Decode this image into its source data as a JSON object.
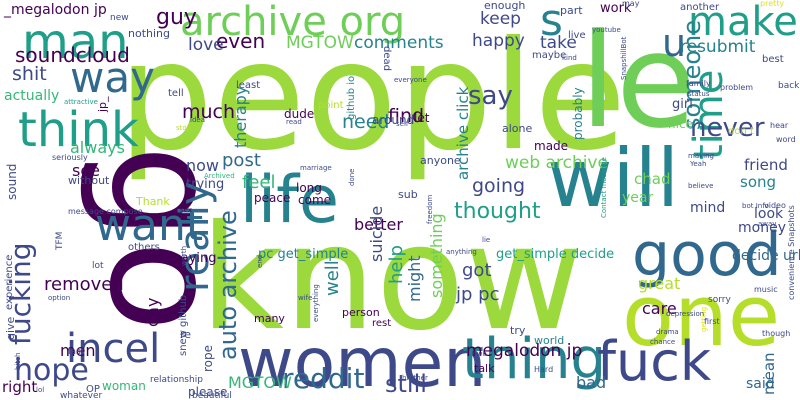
{
  "word_cloud": {
    "palette": {
      "dark_purple": "#440154",
      "indigo": "#3e4989",
      "slate_blue": "#31688e",
      "teal": "#26828e",
      "sea_green": "#1f9e89",
      "green": "#35b779",
      "light_green": "#6ece58",
      "lime": "#b5de2b",
      "yellow": "#e0e31b",
      "leaf": "#9bd93c"
    },
    "words": [
      {
        "text": "people",
        "color": "leaf"
      },
      {
        "text": "know",
        "color": "leaf"
      },
      {
        "text": "go",
        "color": "dark_purple"
      },
      {
        "text": "life",
        "color": "teal"
      },
      {
        "text": "will",
        "color": "teal"
      },
      {
        "text": "one",
        "color": "lime"
      },
      {
        "text": "women",
        "color": "indigo"
      },
      {
        "text": "good",
        "color": "slate_blue"
      },
      {
        "text": "thing",
        "color": "teal"
      },
      {
        "text": "fuck",
        "color": "indigo"
      },
      {
        "text": "want",
        "color": "slate_blue"
      },
      {
        "text": "archive org",
        "color": "light_green"
      },
      {
        "text": "man",
        "color": "sea_green"
      },
      {
        "text": "make",
        "color": "sea_green"
      },
      {
        "text": "think",
        "color": "sea_green"
      },
      {
        "text": "way",
        "color": "slate_blue"
      },
      {
        "text": "le",
        "color": "light_green"
      },
      {
        "text": "s",
        "color": "teal"
      },
      {
        "text": "u",
        "color": "slate_blue"
      },
      {
        "text": "incel",
        "color": "indigo"
      },
      {
        "text": "really",
        "color": "slate_blue"
      },
      {
        "text": "time",
        "color": "sea_green"
      },
      {
        "text": "reddit",
        "color": "slate_blue"
      },
      {
        "text": "still",
        "color": "indigo"
      },
      {
        "text": "hope",
        "color": "indigo"
      },
      {
        "text": "fucking",
        "color": "indigo"
      },
      {
        "text": "auto archive",
        "color": "slate_blue"
      },
      {
        "text": "say",
        "color": "indigo"
      },
      {
        "text": "never",
        "color": "indigo"
      },
      {
        "text": "someone",
        "color": "teal"
      },
      {
        "text": "soundcloud",
        "color": "dark_purple"
      },
      {
        "text": "guy",
        "color": "dark_purple"
      },
      {
        "text": "even",
        "color": "dark_purple"
      },
      {
        "text": "MGTOW",
        "color": "light_green"
      },
      {
        "text": "comments",
        "color": "teal"
      },
      {
        "text": "resubmit",
        "color": "teal"
      },
      {
        "text": "love",
        "color": "indigo"
      },
      {
        "text": "shit",
        "color": "indigo"
      },
      {
        "text": "keep",
        "color": "indigo"
      },
      {
        "text": "take",
        "color": "indigo"
      },
      {
        "text": "happy",
        "color": "indigo"
      },
      {
        "text": "much",
        "color": "dark_purple"
      },
      {
        "text": "need",
        "color": "teal"
      },
      {
        "text": "find",
        "color": "dark_purple"
      },
      {
        "text": "thought",
        "color": "sea_green"
      },
      {
        "text": "web archive",
        "color": "light_green"
      },
      {
        "text": "going",
        "color": "indigo"
      },
      {
        "text": "removed",
        "color": "dark_purple"
      },
      {
        "text": "feel",
        "color": "green"
      },
      {
        "text": "post",
        "color": "slate_blue"
      },
      {
        "text": "therapy",
        "color": "teal"
      },
      {
        "text": "actually",
        "color": "green"
      },
      {
        "text": "always",
        "color": "green"
      },
      {
        "text": "see",
        "color": "dark_purple"
      },
      {
        "text": "now",
        "color": "indigo"
      },
      {
        "text": "better",
        "color": "dark_purple"
      },
      {
        "text": "help",
        "color": "sea_green"
      },
      {
        "text": "got",
        "color": "indigo"
      },
      {
        "text": "jp pc",
        "color": "indigo"
      },
      {
        "text": "world",
        "color": "teal"
      },
      {
        "text": "well",
        "color": "teal"
      },
      {
        "text": "might",
        "color": "slate_blue"
      },
      {
        "text": "men",
        "color": "dark_purple"
      },
      {
        "text": "day",
        "color": "dark_purple"
      },
      {
        "text": "right",
        "color": "dark_purple"
      },
      {
        "text": "MGTOW",
        "color": "green"
      },
      {
        "text": "megalodon jp",
        "color": "dark_purple"
      },
      {
        "text": "bad",
        "color": "slate_blue"
      },
      {
        "text": "great",
        "color": "lime"
      },
      {
        "text": "care",
        "color": "dark_purple"
      },
      {
        "text": "mean",
        "color": "slate_blue"
      },
      {
        "text": "said",
        "color": "slate_blue"
      },
      {
        "text": "money",
        "color": "indigo"
      },
      {
        "text": "friend",
        "color": "indigo"
      },
      {
        "text": "song",
        "color": "teal"
      },
      {
        "text": "chad",
        "color": "light_green"
      },
      {
        "text": "year",
        "color": "light_green"
      },
      {
        "text": "mind",
        "color": "indigo"
      },
      {
        "text": "look",
        "color": "indigo"
      },
      {
        "text": "decide url",
        "color": "slate_blue"
      },
      {
        "text": "something",
        "color": "light_green"
      },
      {
        "text": "suicide",
        "color": "indigo"
      },
      {
        "text": "archive click",
        "color": "teal"
      },
      {
        "text": "_megalodon jp",
        "color": "dark_purple"
      },
      {
        "text": "pc get_simple",
        "color": "teal"
      },
      {
        "text": "get_simple decide",
        "color": "sea_green"
      },
      {
        "text": "work",
        "color": "dark_purple"
      },
      {
        "text": "girl",
        "color": "indigo"
      },
      {
        "text": "trying",
        "color": "indigo"
      },
      {
        "text": "saying",
        "color": "dark_purple"
      },
      {
        "text": "dude",
        "color": "dark_purple"
      },
      {
        "text": "long",
        "color": "dark_purple"
      },
      {
        "text": "come",
        "color": "dark_purple"
      },
      {
        "text": "peace",
        "color": "dark_purple"
      },
      {
        "text": "let",
        "color": "dark_purple"
      },
      {
        "text": "probably",
        "color": "teal"
      },
      {
        "text": "around",
        "color": "indigo"
      },
      {
        "text": "made",
        "color": "dark_purple"
      },
      {
        "text": "part",
        "color": "indigo"
      },
      {
        "text": "enough",
        "color": "indigo"
      },
      {
        "text": "nothing",
        "color": "indigo"
      },
      {
        "text": "sound",
        "color": "indigo"
      },
      {
        "text": "without",
        "color": "indigo"
      },
      {
        "text": "re",
        "color": "indigo"
      },
      {
        "text": "rope",
        "color": "indigo"
      },
      {
        "text": "please",
        "color": "indigo"
      },
      {
        "text": "many",
        "color": "dark_purple"
      },
      {
        "text": "woman",
        "color": "green"
      },
      {
        "text": "nice",
        "color": "light_green"
      },
      {
        "text": "alone",
        "color": "indigo"
      },
      {
        "text": "sub",
        "color": "indigo"
      },
      {
        "text": "anyone",
        "color": "indigo"
      },
      {
        "text": "talk",
        "color": "dark_purple"
      },
      {
        "text": "try",
        "color": "indigo"
      },
      {
        "text": "person",
        "color": "dark_purple"
      },
      {
        "text": "rest",
        "color": "dark_purple"
      },
      {
        "text": "give",
        "color": "indigo"
      },
      {
        "text": "last",
        "color": "indigo"
      },
      {
        "text": "OP",
        "color": "indigo"
      },
      {
        "text": "lot",
        "color": "indigo"
      },
      {
        "text": "experience",
        "color": "indigo"
      },
      {
        "text": "others",
        "color": "indigo"
      },
      {
        "text": "TFM",
        "color": "indigo"
      },
      {
        "text": "Thank",
        "color": "lime"
      },
      {
        "text": "relationship",
        "color": "indigo"
      },
      {
        "text": "snew github",
        "color": "indigo"
      },
      {
        "text": "beautiful",
        "color": "indigo"
      },
      {
        "text": "whatever",
        "color": "indigo"
      },
      {
        "text": "github io",
        "color": "teal"
      },
      {
        "text": "point",
        "color": "lime"
      },
      {
        "text": "dead",
        "color": "indigo"
      },
      {
        "text": "live",
        "color": "indigo"
      },
      {
        "text": "maybe",
        "color": "indigo"
      },
      {
        "text": "new",
        "color": "indigo"
      },
      {
        "text": "least",
        "color": "indigo"
      },
      {
        "text": "tell",
        "color": "indigo"
      },
      {
        "text": "jp_",
        "color": "dark_purple"
      },
      {
        "text": "seriously",
        "color": "indigo"
      },
      {
        "text": "message compose",
        "color": "indigo"
      },
      {
        "text": "attractive",
        "color": "sea_green"
      },
      {
        "text": "Archived",
        "color": "green"
      },
      {
        "text": "idea",
        "color": "indigo"
      },
      {
        "text": "stop",
        "color": "lime"
      },
      {
        "text": "sex",
        "color": "dark_purple"
      },
      {
        "text": "read",
        "color": "indigo"
      },
      {
        "text": "marriage",
        "color": "indigo"
      },
      {
        "text": "everyone",
        "color": "indigo"
      },
      {
        "text": "self",
        "color": "indigo"
      },
      {
        "text": "kind",
        "color": "indigo"
      },
      {
        "text": "youtube",
        "color": "indigo"
      },
      {
        "text": "another",
        "color": "indigo"
      },
      {
        "text": "may",
        "color": "indigo"
      },
      {
        "text": "pretty",
        "color": "yellow"
      },
      {
        "text": "best",
        "color": "indigo"
      },
      {
        "text": "back",
        "color": "indigo"
      },
      {
        "text": "family",
        "color": "indigo"
      },
      {
        "text": "status",
        "color": "indigo"
      },
      {
        "text": "problem",
        "color": "indigo"
      },
      {
        "text": "hear",
        "color": "indigo"
      },
      {
        "text": "don t",
        "color": "lime"
      },
      {
        "text": "word",
        "color": "indigo"
      },
      {
        "text": "making",
        "color": "indigo"
      },
      {
        "text": "Yeah",
        "color": "indigo"
      },
      {
        "text": "believe",
        "color": "indigo"
      },
      {
        "text": "bot Info",
        "color": "indigo"
      },
      {
        "text": "video",
        "color": "indigo"
      },
      {
        "text": "sorry",
        "color": "indigo"
      },
      {
        "text": "drama",
        "color": "indigo"
      },
      {
        "text": "chance",
        "color": "indigo"
      },
      {
        "text": "getting",
        "color": "yellow"
      },
      {
        "text": "first",
        "color": "indigo"
      },
      {
        "text": "though",
        "color": "indigo"
      },
      {
        "text": "music",
        "color": "indigo"
      },
      {
        "text": "away",
        "color": "indigo"
      },
      {
        "text": "convenience Snapshots",
        "color": "indigo"
      },
      {
        "text": "Contact message",
        "color": "sea_green"
      },
      {
        "text": "SnapshillBot",
        "color": "indigo"
      },
      {
        "text": "depression",
        "color": "indigo"
      },
      {
        "text": "brother",
        "color": "indigo"
      },
      {
        "text": "done",
        "color": "indigo"
      },
      {
        "text": "everything",
        "color": "indigo"
      },
      {
        "text": "wife",
        "color": "indigo"
      },
      {
        "text": "end",
        "color": "indigo"
      },
      {
        "text": "anything",
        "color": "indigo"
      },
      {
        "text": "freedom",
        "color": "indigo"
      },
      {
        "text": "two",
        "color": "indigo"
      },
      {
        "text": "lie",
        "color": "indigo"
      },
      {
        "text": "Hard",
        "color": "indigo"
      },
      {
        "text": "lol",
        "color": "indigo"
      },
      {
        "text": "option",
        "color": "indigo"
      },
      {
        "text": "bitch",
        "color": "indigo"
      },
      {
        "text": "worth",
        "color": "indigo"
      }
    ]
  }
}
